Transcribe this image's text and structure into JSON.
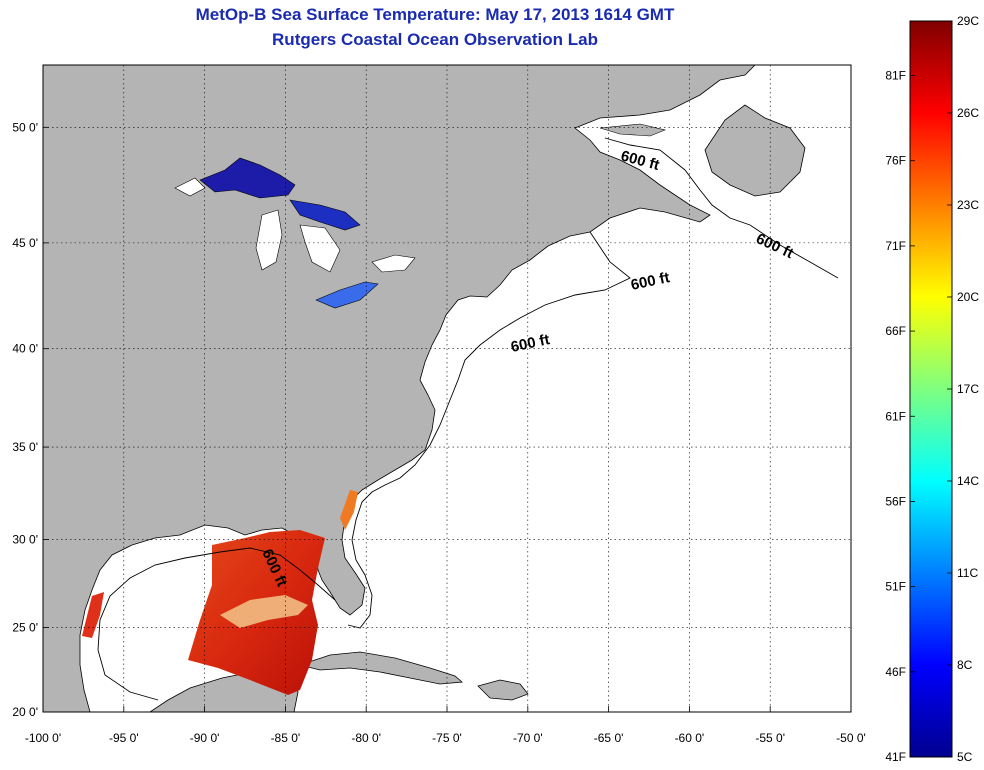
{
  "title": "MetOp-B Sea Surface Temperature:  May 17, 2013 1614 GMT",
  "subtitle": "Rutgers Coastal Ocean Observation Lab",
  "map": {
    "lat_ticks": [
      "50 0'",
      "45 0'",
      "40 0'",
      "35 0'",
      "30 0'",
      "25 0'",
      "20 0'"
    ],
    "lon_ticks": [
      "-100 0'",
      "-95 0'",
      "-90 0'",
      "-85 0'",
      "-80 0'",
      "-75 0'",
      "-70 0'",
      "-65 0'",
      "-60 0'",
      "-55 0'",
      "-50 0'"
    ],
    "lon_range": [
      -100,
      -50
    ],
    "lat_range": [
      20,
      52.5
    ],
    "land_color": "#b4b4b4",
    "ocean_color": "#ffffff",
    "grid": "dotted",
    "contour_label": "600 ft"
  },
  "colorbar": {
    "celsius_ticks": [
      "29C",
      "26C",
      "23C",
      "20C",
      "17C",
      "14C",
      "11C",
      "8C",
      "5C"
    ],
    "fahrenheit_ticks": [
      "81F",
      "76F",
      "71F",
      "66F",
      "61F",
      "56F",
      "51F",
      "46F",
      "41F"
    ],
    "colormap": "jet",
    "range_c": [
      5,
      29
    ]
  }
}
